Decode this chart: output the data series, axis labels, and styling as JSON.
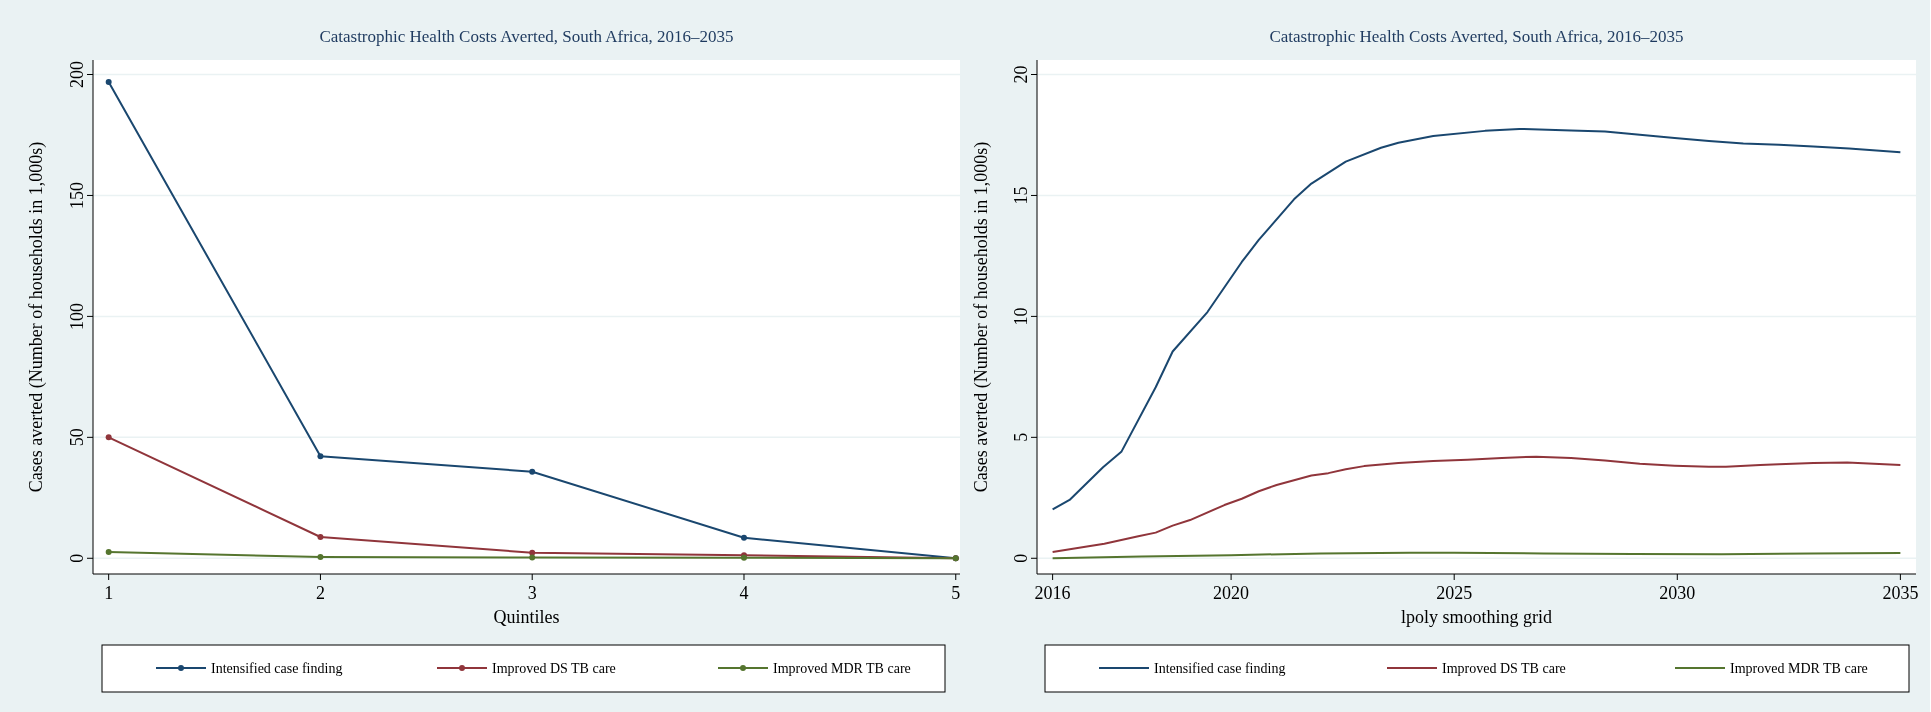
{
  "chart_data": [
    {
      "type": "line",
      "title": "Catastrophic Health Costs Averted, South Africa, 2016–2035",
      "xlabel": "Quintiles",
      "ylabel": "Cases averted (Number of households in 1,000s)",
      "x": [
        1,
        2,
        3,
        4,
        5
      ],
      "xlim": [
        0.926,
        5.02
      ],
      "xticks": [
        1,
        2,
        3,
        4,
        5
      ],
      "ylim": [
        -6.5,
        206
      ],
      "yticks": [
        0,
        50,
        100,
        150,
        200
      ],
      "grid": "y",
      "legend": "bottom",
      "marker": "circle",
      "line_style": "solid",
      "series": [
        {
          "name": "Intensified case finding",
          "color": "#1a476f",
          "values": [
            196.9,
            42.2,
            35.8,
            8.5,
            0
          ]
        },
        {
          "name": "Improved DS TB care",
          "color": "#90353b",
          "values": [
            50,
            8.8,
            2.3,
            1.3,
            0
          ]
        },
        {
          "name": "Improved MDR TB care",
          "color": "#55752f",
          "values": [
            2.6,
            0.5,
            0.3,
            0.2,
            0
          ]
        }
      ]
    },
    {
      "type": "line",
      "title": "Catastrophic Health Costs Averted, South Africa, 2016–2035",
      "xlabel": "lpoly smoothing grid",
      "ylabel": "Cases averted (Number of households in 1,000s)",
      "xlim": [
        2015.65,
        2035.35
      ],
      "xticks": [
        2016,
        2020,
        2025,
        2030,
        2035
      ],
      "ylim": [
        -0.65,
        20.6
      ],
      "yticks": [
        0,
        5,
        10,
        15,
        20
      ],
      "grid": "y",
      "legend": "bottom",
      "marker": "none",
      "line_style": "solid",
      "series": [
        {
          "name": "Intensified case finding",
          "color": "#1a476f",
          "x": [
            2016,
            2016.38,
            2017.13,
            2017.54,
            2018.31,
            2018.69,
            2019.47,
            2020.24,
            2020.62,
            2021.41,
            2021.8,
            2022.57,
            2023.36,
            2023.75,
            2024.53,
            2025.69,
            2026.46,
            2027.62,
            2028.38,
            2029.16,
            2029.94,
            2030.71,
            2031.48,
            2032.28,
            2033.05,
            2033.85,
            2035
          ],
          "values": [
            2.02,
            2.41,
            3.76,
            4.4,
            7.07,
            8.55,
            10.18,
            12.25,
            13.16,
            14.84,
            15.49,
            16.4,
            16.97,
            17.18,
            17.46,
            17.67,
            17.75,
            17.69,
            17.64,
            17.51,
            17.38,
            17.25,
            17.15,
            17.1,
            17.02,
            16.94,
            16.79
          ]
        },
        {
          "name": "Improved DS TB care",
          "color": "#90353b",
          "x": [
            2016,
            2016.77,
            2017.16,
            2017.92,
            2018.31,
            2018.69,
            2019.08,
            2019.85,
            2020.24,
            2020.62,
            2021.02,
            2021.8,
            2022.18,
            2022.57,
            2022.98,
            2023.75,
            2024.53,
            2025.3,
            2026.07,
            2026.84,
            2027.62,
            2028.38,
            2029.16,
            2029.94,
            2030.71,
            2031.09,
            2031.86,
            2032.28,
            2033.05,
            2033.81,
            2035
          ],
          "values": [
            0.26,
            0.49,
            0.6,
            0.91,
            1.06,
            1.35,
            1.58,
            2.2,
            2.46,
            2.77,
            3.03,
            3.42,
            3.52,
            3.68,
            3.81,
            3.94,
            4.02,
            4.07,
            4.15,
            4.2,
            4.15,
            4.04,
            3.91,
            3.83,
            3.78,
            3.78,
            3.86,
            3.89,
            3.94,
            3.96,
            3.86
          ]
        },
        {
          "name": "Improved MDR TB care",
          "color": "#55752f",
          "x": [
            2016,
            2018,
            2020,
            2022,
            2024,
            2025,
            2027,
            2029,
            2031,
            2033,
            2035
          ],
          "values": [
            0,
            0.07,
            0.13,
            0.2,
            0.23,
            0.23,
            0.2,
            0.18,
            0.17,
            0.2,
            0.22
          ]
        }
      ]
    }
  ]
}
